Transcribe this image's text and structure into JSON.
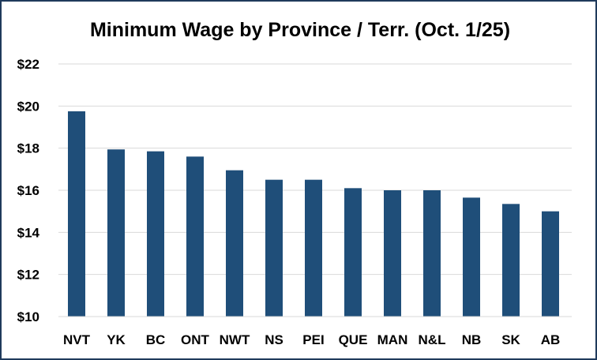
{
  "chart_data": {
    "type": "bar",
    "title": "Minimum Wage by Province / Terr. (Oct. 1/25)",
    "categories": [
      "NVT",
      "YK",
      "BC",
      "ONT",
      "NWT",
      "NS",
      "PEI",
      "QUE",
      "MAN",
      "N&L",
      "NB",
      "SK",
      "AB"
    ],
    "values": [
      19.75,
      17.94,
      17.85,
      17.6,
      16.95,
      16.5,
      16.5,
      16.1,
      16.0,
      16.0,
      15.65,
      15.35,
      15.0
    ],
    "ylim": [
      10,
      22
    ],
    "yticks": [
      "$10",
      "$12",
      "$14",
      "$16",
      "$18",
      "$20",
      "$22"
    ],
    "xlabel": "",
    "ylabel": "",
    "grid": true,
    "bar_color": "#1f4e79",
    "grid_color": "#d9d9d9"
  }
}
